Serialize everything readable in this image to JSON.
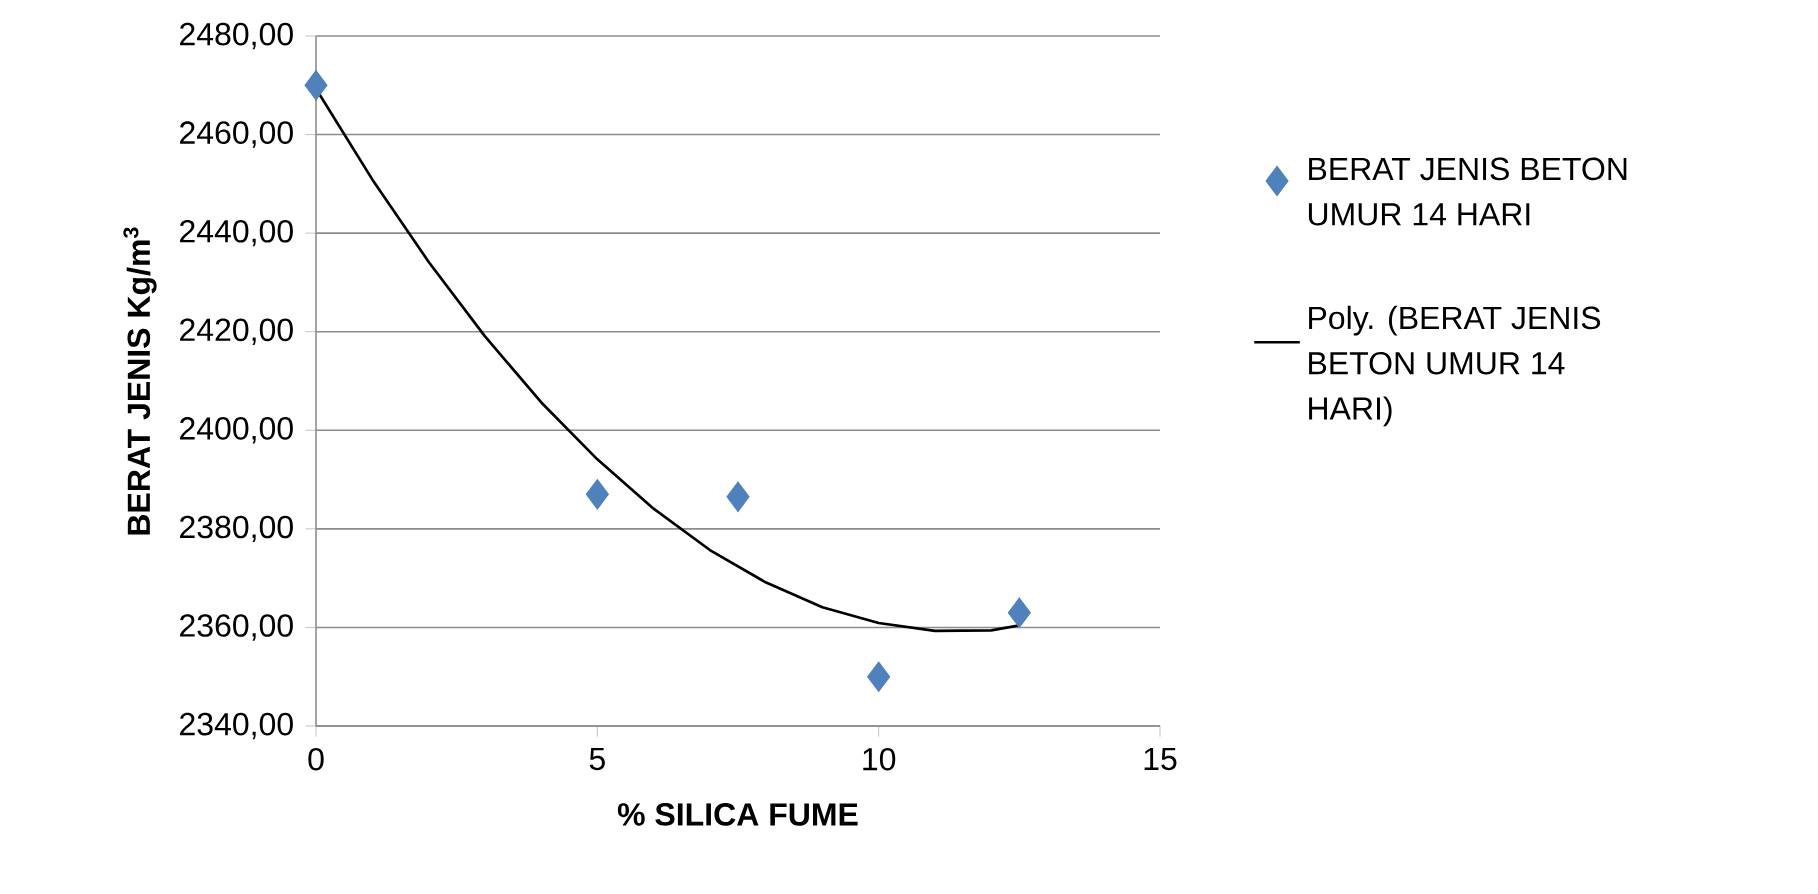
{
  "chart_data": {
    "type": "scatter",
    "xlabel": "% SILICA FUME",
    "ylabel": "BERAT JENIS Kg/m$^{3}$",
    "x": [
      0,
      5,
      7.5,
      10,
      12.5
    ],
    "xlim": [
      0,
      15
    ],
    "xticks": [
      0,
      5,
      10,
      15
    ],
    "ylim": [
      2340,
      2480
    ],
    "yticks": [
      {
        "value": 2340,
        "label": "2340,00"
      },
      {
        "value": 2360,
        "label": "2360,00"
      },
      {
        "value": 2380,
        "label": "2380,00"
      },
      {
        "value": 2400,
        "label": "2400,00"
      },
      {
        "value": 2420,
        "label": "2420,00"
      },
      {
        "value": 2440,
        "label": "2440,00"
      },
      {
        "value": 2460,
        "label": "2460,00"
      },
      {
        "value": 2480,
        "label": "2480,00"
      }
    ],
    "grid": "y",
    "legend": "right",
    "marker": "diamond",
    "series": [
      {
        "name": "BERAT JENIS BETON UMUR 14 HARI",
        "color": "#4f81bd",
        "values": [
          2470,
          2387,
          2386.5,
          2350,
          2363
        ]
      },
      {
        "name": "Poly. (BERAT JENIS BETON UMUR 14 HARI)",
        "type": "line",
        "color": "#000000",
        "marker": "none",
        "x": [
          0,
          1,
          2,
          3,
          4,
          5,
          6,
          7,
          8,
          9,
          10,
          11,
          12,
          12.5
        ],
        "values": [
          2469.3,
          2450.9,
          2434.2,
          2419.1,
          2405.7,
          2394.1,
          2384.1,
          2375.7,
          2369.1,
          2364.1,
          2360.9,
          2359.3,
          2359.4,
          2360.4
        ]
      }
    ]
  }
}
